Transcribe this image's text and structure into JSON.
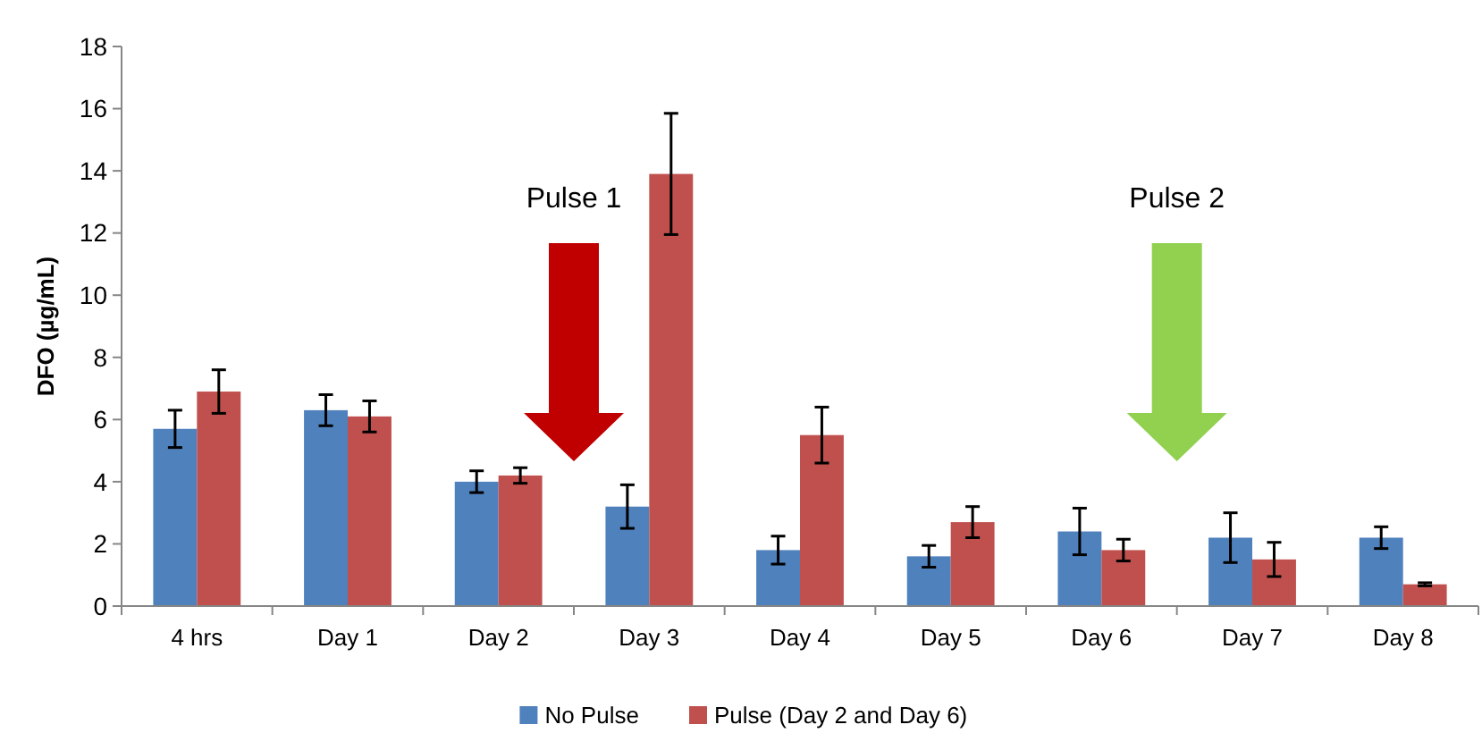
{
  "chart_data": {
    "type": "bar",
    "ylabel": "DFO (µg/mL)",
    "categories": [
      "4 hrs",
      "Day 1",
      "Day 2",
      "Day 3",
      "Day 4",
      "Day 5",
      "Day 6",
      "Day 7",
      "Day 8"
    ],
    "series": [
      {
        "name": "No Pulse",
        "color": "#4f81bd",
        "values": [
          5.7,
          6.3,
          4.0,
          3.2,
          1.8,
          1.6,
          2.4,
          2.2,
          2.2
        ],
        "errors": [
          0.6,
          0.5,
          0.35,
          0.7,
          0.45,
          0.35,
          0.75,
          0.8,
          0.35
        ]
      },
      {
        "name": "Pulse (Day 2 and Day 6)",
        "color": "#c0504d",
        "values": [
          6.9,
          6.1,
          4.2,
          13.9,
          5.5,
          2.7,
          1.8,
          1.5,
          0.7
        ],
        "errors": [
          0.7,
          0.5,
          0.25,
          1.95,
          0.9,
          0.5,
          0.35,
          0.55,
          0.05
        ]
      }
    ],
    "annotations": [
      "Pulse 1",
      "Pulse 2"
    ],
    "ylim": [
      0,
      18
    ],
    "yticks": [
      0,
      2,
      4,
      6,
      8,
      10,
      12,
      14,
      16,
      18
    ],
    "grid": false,
    "legend": "bottom"
  }
}
